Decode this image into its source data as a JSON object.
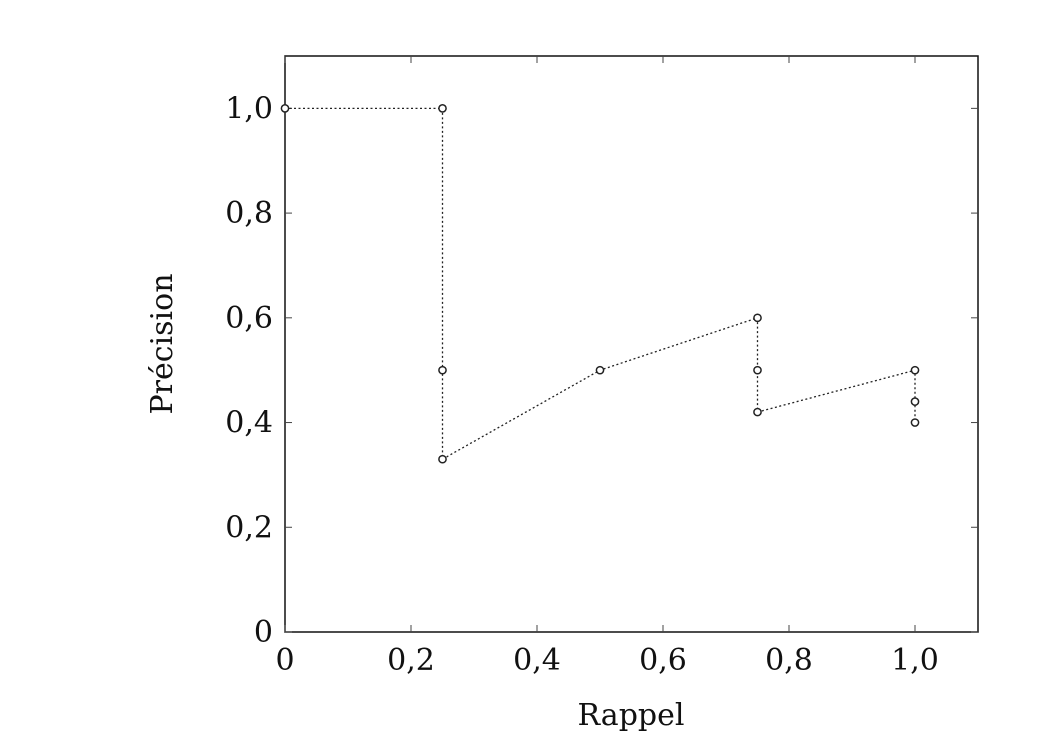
{
  "chart_data": {
    "type": "line",
    "xlabel": "Rappel",
    "ylabel": "Précision",
    "xlim": [
      0,
      1.1
    ],
    "ylim": [
      0,
      1.1
    ],
    "xticks": [
      0,
      0.2,
      0.4,
      0.6,
      0.8,
      1.0
    ],
    "xtick_labels": [
      "0",
      "0,2",
      "0,4",
      "0,6",
      "0,8",
      "1,0"
    ],
    "yticks": [
      0,
      0.2,
      0.4,
      0.6,
      0.8,
      1.0
    ],
    "ytick_labels": [
      "0",
      "0,2",
      "0,4",
      "0,6",
      "0,8",
      "1,0"
    ],
    "grid": false,
    "series": [
      {
        "line_style": "dotted",
        "marker": "open-circle",
        "color": "#222222",
        "points": [
          {
            "x": 0,
            "y": 1.0
          },
          {
            "x": 0.25,
            "y": 1.0
          },
          {
            "x": 0.25,
            "y": 0.5
          },
          {
            "x": 0.25,
            "y": 0.33
          },
          {
            "x": 0.5,
            "y": 0.5
          },
          {
            "x": 0.75,
            "y": 0.6
          },
          {
            "x": 0.75,
            "y": 0.5
          },
          {
            "x": 0.75,
            "y": 0.42
          },
          {
            "x": 1.0,
            "y": 0.5
          },
          {
            "x": 1.0,
            "y": 0.44
          },
          {
            "x": 1.0,
            "y": 0.4
          }
        ]
      }
    ]
  }
}
